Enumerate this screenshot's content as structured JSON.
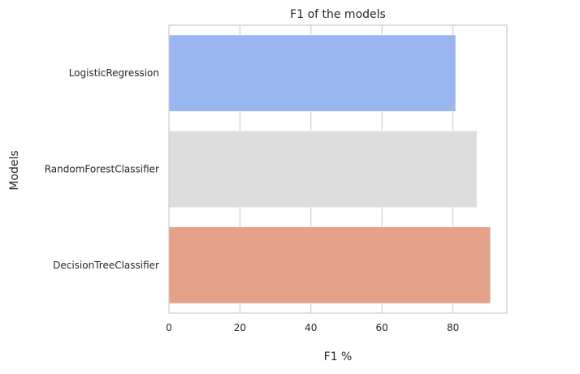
{
  "chart_data": {
    "type": "bar",
    "orientation": "horizontal",
    "title": "F1 of the models",
    "xlabel": "F1 %",
    "ylabel": "Models",
    "categories": [
      "LogisticRegression",
      "RandomForestClassifier",
      "DecisionTreeClassifier"
    ],
    "values": [
      80.8,
      86.8,
      90.6
    ],
    "colors": [
      "#9ab6f1",
      "#dddddd",
      "#e6a18a"
    ],
    "xlim": [
      0,
      95.2
    ],
    "xticks": [
      0,
      20,
      40,
      60,
      80
    ],
    "grid": "x-only",
    "legend": "none"
  }
}
